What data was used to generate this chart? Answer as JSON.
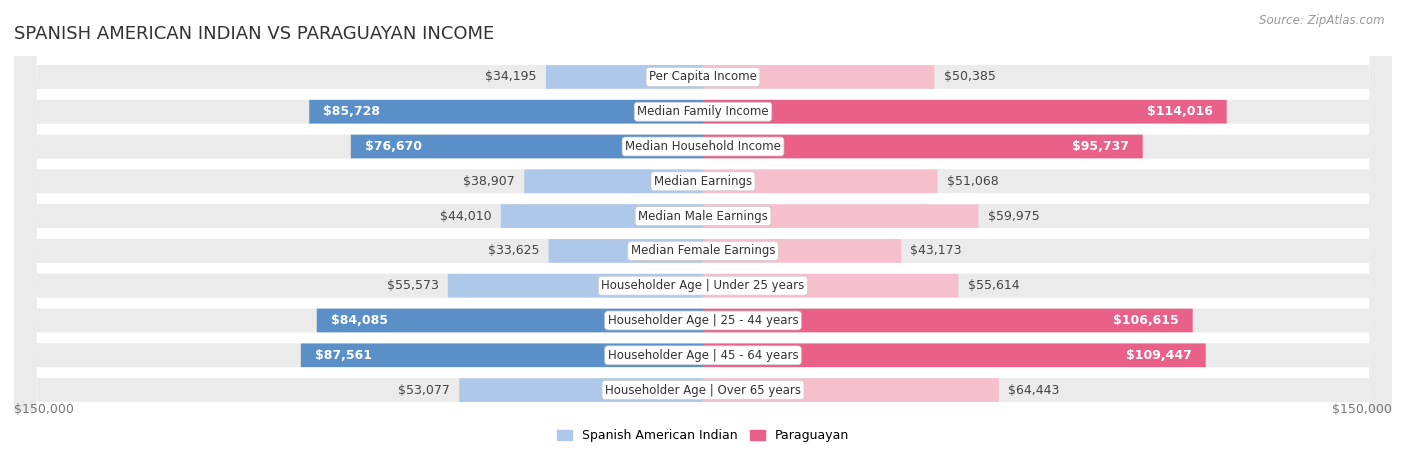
{
  "title": "SPANISH AMERICAN INDIAN VS PARAGUAYAN INCOME",
  "source": "Source: ZipAtlas.com",
  "categories": [
    "Per Capita Income",
    "Median Family Income",
    "Median Household Income",
    "Median Earnings",
    "Median Male Earnings",
    "Median Female Earnings",
    "Householder Age | Under 25 years",
    "Householder Age | 25 - 44 years",
    "Householder Age | 45 - 64 years",
    "Householder Age | Over 65 years"
  ],
  "spanish_values": [
    34195,
    85728,
    76670,
    38907,
    44010,
    33625,
    55573,
    84085,
    87561,
    53077
  ],
  "paraguayan_values": [
    50385,
    114016,
    95737,
    51068,
    59975,
    43173,
    55614,
    106615,
    109447,
    64443
  ],
  "spanish_labels": [
    "$34,195",
    "$85,728",
    "$76,670",
    "$38,907",
    "$44,010",
    "$33,625",
    "$55,573",
    "$84,085",
    "$87,561",
    "$53,077"
  ],
  "paraguayan_labels": [
    "$50,385",
    "$114,016",
    "$95,737",
    "$51,068",
    "$59,975",
    "$43,173",
    "$55,614",
    "$106,615",
    "$109,447",
    "$64,443"
  ],
  "spanish_color_light": "#adc8e8",
  "spanish_color_dark": "#5a8fc7",
  "paraguayan_color_light": "#f5bfce",
  "paraguayan_color_dark": "#e96088",
  "max_value": 150000,
  "bg_row_color": "#ebebeb",
  "bg_chart_color": "#ffffff",
  "label_font_size": 9,
  "title_font_size": 13,
  "category_font_size": 8.5,
  "legend_label_spanish": "Spanish American Indian",
  "legend_label_paraguayan": "Paraguayan",
  "axis_label": "$150,000",
  "spanish_large_threshold": 60000,
  "paraguayan_large_threshold": 75000
}
